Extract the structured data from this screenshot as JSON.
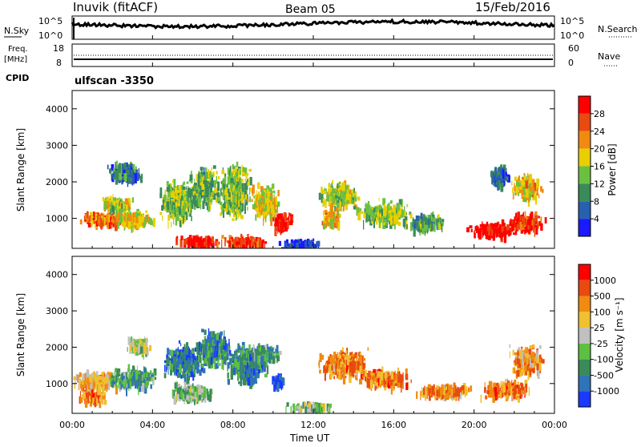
{
  "header": {
    "title": "Inuvik (fitACF)",
    "beam": "Beam 05",
    "date": "15/Feb/2016"
  },
  "top_panels": {
    "nsky_label": "N.Sky",
    "nsky_ticks": [
      "10^5",
      "10^0"
    ],
    "nsearch_label": "N.Search",
    "nsearch_ticks": [
      "10^5",
      "10^0"
    ],
    "freq_label_1": "Freq.",
    "freq_label_2": "[MHz]",
    "freq_ticks": [
      "18",
      "8"
    ],
    "nave_label": "Nave",
    "nave_ticks": [
      "60",
      "0"
    ],
    "cpid_label": "CPID",
    "cpid_value": "ulfscan -3350"
  },
  "chart_data": [
    {
      "type": "heatmap",
      "name": "power",
      "ylabel": "Slant Range [km]",
      "yticks": [
        1000,
        2000,
        3000,
        4000
      ],
      "ylim": [
        180,
        4500
      ],
      "x_range_hours": [
        0,
        24
      ],
      "colorbar_label": "Power [dB]",
      "colorbar_ticks": [
        "4",
        "8",
        "12",
        "16",
        "20",
        "24",
        "28"
      ],
      "colorbar_colors": [
        "#1a1aff",
        "#2860b0",
        "#3a8a5a",
        "#6cc040",
        "#e8d000",
        "#f08a10",
        "#e84a10",
        "#ff0000"
      ],
      "blobs": [
        {
          "t": 1.6,
          "r": 1050,
          "dt": 1.6,
          "dr": 230,
          "lvl": 0.75
        },
        {
          "t": 2.2,
          "r": 1450,
          "dt": 1.0,
          "dr": 260,
          "lvl": 0.5
        },
        {
          "t": 3.0,
          "r": 1050,
          "dt": 1.2,
          "dr": 280,
          "lvl": 0.55
        },
        {
          "t": 5.2,
          "r": 1500,
          "dt": 1.1,
          "dr": 700,
          "lvl": 0.45
        },
        {
          "t": 6.3,
          "r": 420,
          "dt": 1.4,
          "dr": 170,
          "lvl": 0.92
        },
        {
          "t": 6.5,
          "r": 1900,
          "dt": 0.9,
          "dr": 700,
          "lvl": 0.4
        },
        {
          "t": 8.0,
          "r": 1800,
          "dt": 1.0,
          "dr": 900,
          "lvl": 0.45
        },
        {
          "t": 8.4,
          "r": 420,
          "dt": 1.5,
          "dr": 180,
          "lvl": 0.85
        },
        {
          "t": 9.6,
          "r": 1500,
          "dt": 1.0,
          "dr": 600,
          "lvl": 0.55
        },
        {
          "t": 10.4,
          "r": 950,
          "dt": 0.6,
          "dr": 300,
          "lvl": 0.95
        },
        {
          "t": 2.6,
          "r": 2300,
          "dt": 1.0,
          "dr": 350,
          "lvl": 0.25
        },
        {
          "t": 13.2,
          "r": 1700,
          "dt": 1.2,
          "dr": 450,
          "lvl": 0.5
        },
        {
          "t": 12.9,
          "r": 1050,
          "dt": 0.6,
          "dr": 300,
          "lvl": 0.6
        },
        {
          "t": 15.5,
          "r": 1200,
          "dt": 1.6,
          "dr": 380,
          "lvl": 0.45
        },
        {
          "t": 17.6,
          "r": 950,
          "dt": 1.2,
          "dr": 300,
          "lvl": 0.35
        },
        {
          "t": 20.9,
          "r": 750,
          "dt": 1.5,
          "dr": 250,
          "lvl": 0.95
        },
        {
          "t": 22.5,
          "r": 950,
          "dt": 1.2,
          "dr": 300,
          "lvl": 0.9
        },
        {
          "t": 22.5,
          "r": 1900,
          "dt": 0.9,
          "dr": 450,
          "lvl": 0.6
        },
        {
          "t": 21.2,
          "r": 2200,
          "dt": 0.6,
          "dr": 350,
          "lvl": 0.2
        },
        {
          "t": 11.3,
          "r": 350,
          "dt": 1.2,
          "dr": 150,
          "lvl": 0.1
        }
      ]
    },
    {
      "type": "heatmap",
      "name": "velocity",
      "ylabel": "Slant Range [km]",
      "yticks": [
        1000,
        2000,
        3000,
        4000
      ],
      "ylim": [
        180,
        4500
      ],
      "x_range_hours": [
        0,
        24
      ],
      "xticks": [
        "00:00",
        "04:00",
        "08:00",
        "12:00",
        "16:00",
        "20:00",
        "00:00"
      ],
      "xlabel": "Time UT",
      "colorbar_label": "Velocity [m s⁻¹]",
      "colorbar_ticks": [
        "1000",
        "500",
        "100",
        "25",
        "-25",
        "-100",
        "-500",
        "-1000"
      ],
      "colorbar_colors": [
        "#1a3aff",
        "#2e74b8",
        "#3a8a5a",
        "#5cc040",
        "#c0c0c0",
        "#f0c030",
        "#f08a10",
        "#e84a10",
        "#ff0000"
      ],
      "blobs": [
        {
          "t": 1.2,
          "r": 1150,
          "dt": 1.4,
          "dr": 300,
          "lvl": 0.62
        },
        {
          "t": 1.0,
          "r": 700,
          "dt": 0.9,
          "dr": 200,
          "lvl": 0.75
        },
        {
          "t": 3.0,
          "r": 1200,
          "dt": 1.5,
          "dr": 350,
          "lvl": 0.3
        },
        {
          "t": 5.5,
          "r": 1700,
          "dt": 1.2,
          "dr": 600,
          "lvl": 0.2
        },
        {
          "t": 7.0,
          "r": 2000,
          "dt": 1.0,
          "dr": 700,
          "lvl": 0.25
        },
        {
          "t": 6.0,
          "r": 800,
          "dt": 1.3,
          "dr": 300,
          "lvl": 0.4
        },
        {
          "t": 8.7,
          "r": 1600,
          "dt": 1.3,
          "dr": 700,
          "lvl": 0.22
        },
        {
          "t": 10.2,
          "r": 1150,
          "dt": 0.4,
          "dr": 180,
          "lvl": 0.05
        },
        {
          "t": 9.6,
          "r": 1900,
          "dt": 0.8,
          "dr": 300,
          "lvl": 0.3
        },
        {
          "t": 13.5,
          "r": 1600,
          "dt": 1.5,
          "dr": 500,
          "lvl": 0.72
        },
        {
          "t": 15.5,
          "r": 1200,
          "dt": 1.6,
          "dr": 300,
          "lvl": 0.74
        },
        {
          "t": 18.5,
          "r": 850,
          "dt": 1.6,
          "dr": 250,
          "lvl": 0.7
        },
        {
          "t": 21.5,
          "r": 900,
          "dt": 1.5,
          "dr": 300,
          "lvl": 0.75
        },
        {
          "t": 22.6,
          "r": 1700,
          "dt": 1.0,
          "dr": 500,
          "lvl": 0.68
        },
        {
          "t": 3.3,
          "r": 2100,
          "dt": 0.8,
          "dr": 300,
          "lvl": 0.48
        },
        {
          "t": 11.8,
          "r": 400,
          "dt": 1.4,
          "dr": 150,
          "lvl": 0.4
        }
      ]
    }
  ],
  "colors": {
    "frame": "#000000",
    "background": "#ffffff"
  }
}
